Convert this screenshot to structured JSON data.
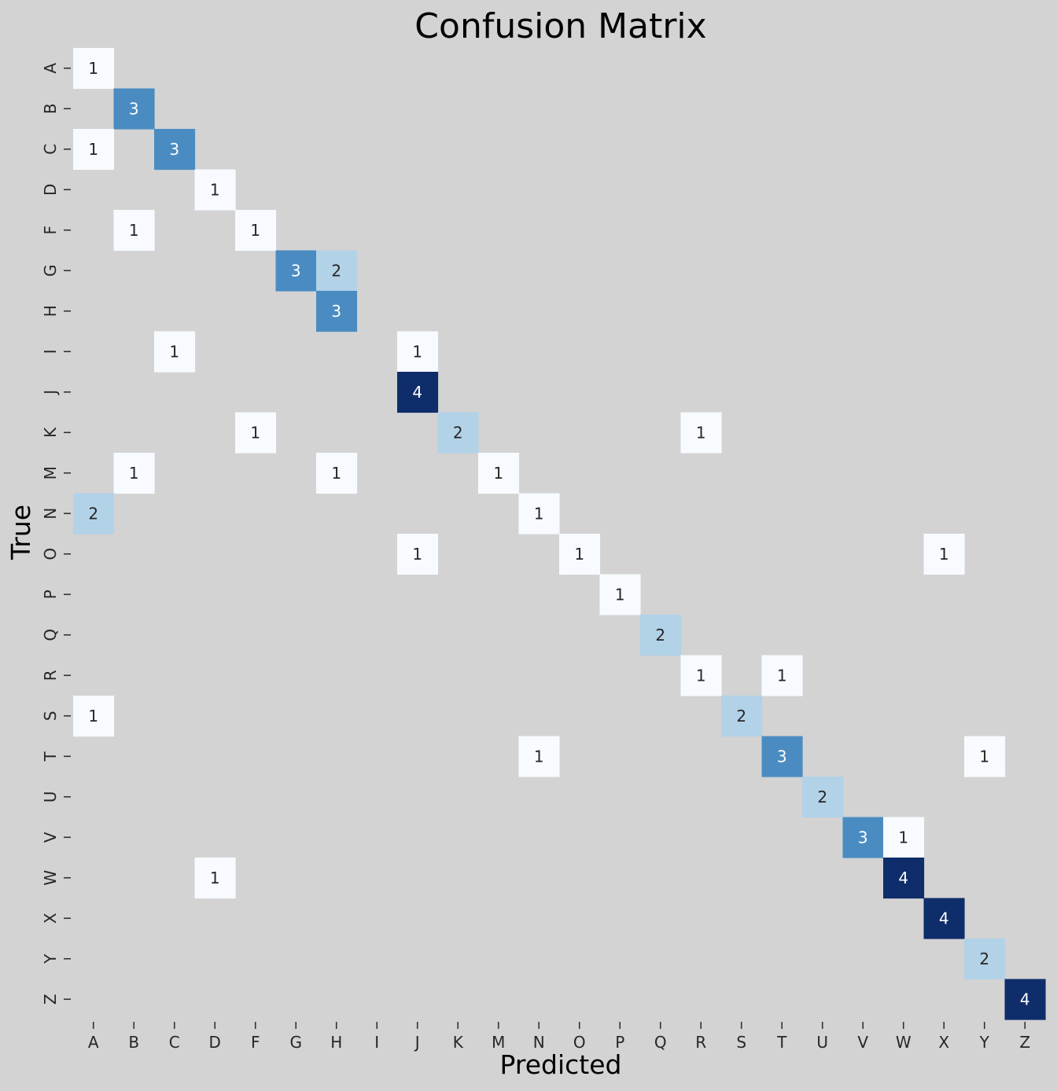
{
  "chart_data": {
    "type": "heatmap",
    "title": "Confusion Matrix",
    "xlabel": "Predicted",
    "ylabel": "True",
    "x_categories": [
      "A",
      "B",
      "C",
      "D",
      "F",
      "G",
      "H",
      "I",
      "J",
      "K",
      "M",
      "N",
      "O",
      "P",
      "Q",
      "R",
      "S",
      "T",
      "U",
      "V",
      "W",
      "X",
      "Y",
      "Z"
    ],
    "y_categories": [
      "A",
      "B",
      "C",
      "D",
      "F",
      "G",
      "H",
      "I",
      "J",
      "K",
      "M",
      "N",
      "O",
      "P",
      "Q",
      "R",
      "S",
      "T",
      "U",
      "V",
      "W",
      "X",
      "Y",
      "Z"
    ],
    "colormap": "Blues",
    "value_range": [
      1,
      4
    ],
    "zero_cells_shown": false,
    "cells": [
      {
        "true": "A",
        "pred": "A",
        "value": 1
      },
      {
        "true": "B",
        "pred": "B",
        "value": 3
      },
      {
        "true": "C",
        "pred": "A",
        "value": 1
      },
      {
        "true": "C",
        "pred": "C",
        "value": 3
      },
      {
        "true": "D",
        "pred": "D",
        "value": 1
      },
      {
        "true": "F",
        "pred": "B",
        "value": 1
      },
      {
        "true": "F",
        "pred": "F",
        "value": 1
      },
      {
        "true": "G",
        "pred": "G",
        "value": 3
      },
      {
        "true": "G",
        "pred": "H",
        "value": 2
      },
      {
        "true": "H",
        "pred": "H",
        "value": 3
      },
      {
        "true": "I",
        "pred": "C",
        "value": 1
      },
      {
        "true": "I",
        "pred": "J",
        "value": 1
      },
      {
        "true": "J",
        "pred": "J",
        "value": 4
      },
      {
        "true": "K",
        "pred": "F",
        "value": 1
      },
      {
        "true": "K",
        "pred": "K",
        "value": 2
      },
      {
        "true": "K",
        "pred": "R",
        "value": 1
      },
      {
        "true": "M",
        "pred": "B",
        "value": 1
      },
      {
        "true": "M",
        "pred": "H",
        "value": 1
      },
      {
        "true": "M",
        "pred": "M",
        "value": 1
      },
      {
        "true": "N",
        "pred": "A",
        "value": 2
      },
      {
        "true": "N",
        "pred": "N",
        "value": 1
      },
      {
        "true": "O",
        "pred": "J",
        "value": 1
      },
      {
        "true": "O",
        "pred": "O",
        "value": 1
      },
      {
        "true": "O",
        "pred": "X",
        "value": 1
      },
      {
        "true": "P",
        "pred": "P",
        "value": 1
      },
      {
        "true": "Q",
        "pred": "Q",
        "value": 2
      },
      {
        "true": "R",
        "pred": "R",
        "value": 1
      },
      {
        "true": "R",
        "pred": "T",
        "value": 1
      },
      {
        "true": "S",
        "pred": "A",
        "value": 1
      },
      {
        "true": "S",
        "pred": "S",
        "value": 2
      },
      {
        "true": "T",
        "pred": "N",
        "value": 1
      },
      {
        "true": "T",
        "pred": "T",
        "value": 3
      },
      {
        "true": "T",
        "pred": "Y",
        "value": 1
      },
      {
        "true": "U",
        "pred": "U",
        "value": 2
      },
      {
        "true": "V",
        "pred": "V",
        "value": 3
      },
      {
        "true": "V",
        "pred": "W",
        "value": 1
      },
      {
        "true": "W",
        "pred": "D",
        "value": 1
      },
      {
        "true": "W",
        "pred": "W",
        "value": 4
      },
      {
        "true": "X",
        "pred": "X",
        "value": 4
      },
      {
        "true": "Y",
        "pred": "Y",
        "value": 2
      },
      {
        "true": "Z",
        "pred": "Z",
        "value": 4
      }
    ],
    "colors": {
      "background": "#d3d3d3",
      "1": "#f7fbff",
      "2": "#b2d2e8",
      "3": "#4a8cc2",
      "4": "#0e2d6a",
      "text_dark": "#262626",
      "text_light": "#ffffff"
    }
  }
}
